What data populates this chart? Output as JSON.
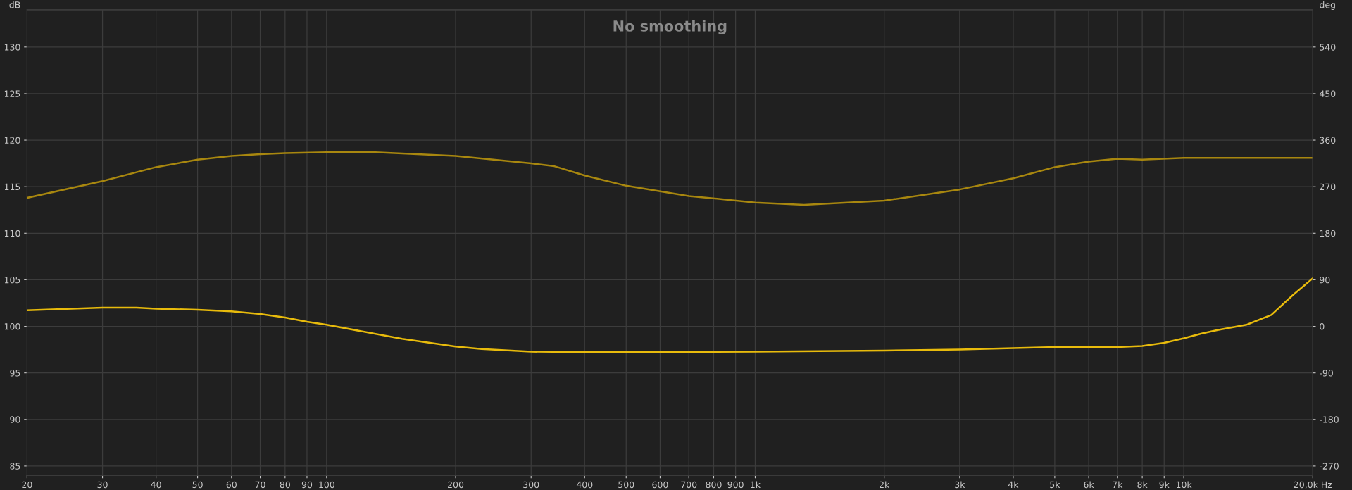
{
  "chart_data": {
    "type": "line",
    "title": "No smoothing",
    "ylabel": "dB",
    "y2label": "deg",
    "log": "x",
    "xlim": [
      20,
      20000
    ],
    "xticks": [
      20,
      30,
      40,
      50,
      60,
      70,
      80,
      90,
      100,
      200,
      300,
      400,
      500,
      600,
      700,
      800,
      900,
      {
        "value": 1000,
        "label": "1k"
      },
      {
        "value": 2000,
        "label": "2k"
      },
      {
        "value": 3000,
        "label": "3k"
      },
      {
        "value": 4000,
        "label": "4k"
      },
      {
        "value": 5000,
        "label": "5k"
      },
      {
        "value": 6000,
        "label": "6k"
      },
      {
        "value": 7000,
        "label": "7k"
      },
      {
        "value": 8000,
        "label": "8k"
      },
      {
        "value": 9000,
        "label": "9k"
      },
      {
        "value": 10000,
        "label": "10k"
      },
      {
        "value": 20000,
        "label": "20,0k Hz"
      }
    ],
    "ylim": [
      84,
      134
    ],
    "yticks": [
      85,
      90,
      95,
      100,
      105,
      110,
      115,
      120,
      125,
      130
    ],
    "y2lim": [
      -288,
      612
    ],
    "y2ticks": [
      -270,
      -180,
      -90,
      0,
      90,
      180,
      270,
      360,
      450,
      540
    ],
    "grid": true,
    "marker": "none",
    "line_style": "solid",
    "series": [
      {
        "color": "#a8870f",
        "x": [
          20,
          30,
          40,
          50,
          60,
          70,
          80,
          100,
          130,
          200,
          300,
          340,
          400,
          500,
          700,
          1000,
          1300,
          2000,
          3000,
          4000,
          5000,
          6000,
          7000,
          8000,
          10000,
          14000,
          20000
        ],
        "values": [
          113.8,
          115.6,
          117.1,
          117.9,
          118.3,
          118.5,
          118.6,
          118.7,
          118.7,
          118.3,
          117.5,
          117.2,
          116.2,
          115.1,
          114.0,
          113.3,
          113.05,
          113.5,
          114.7,
          115.9,
          117.1,
          117.7,
          118.0,
          117.9,
          118.1,
          118.1,
          118.1
        ]
      },
      {
        "color": "#e8bb0c",
        "axis": "y2",
        "x": [
          20,
          30,
          36,
          40,
          50,
          60,
          70,
          80,
          90,
          100,
          150,
          200,
          230,
          300,
          400,
          1000,
          2000,
          3000,
          4000,
          5000,
          6000,
          7000,
          8000,
          9000,
          10000,
          11000,
          12000,
          14000,
          16000,
          18000,
          20000
        ],
        "values": [
          31,
          36,
          36,
          34,
          32,
          29,
          24,
          17,
          9,
          3,
          -24,
          -39,
          -44,
          -49,
          -50,
          -49,
          -47,
          -45,
          -42,
          -40,
          -40,
          -40,
          -38,
          -32,
          -23,
          -14,
          -7,
          3,
          22,
          61,
          93
        ]
      }
    ]
  }
}
